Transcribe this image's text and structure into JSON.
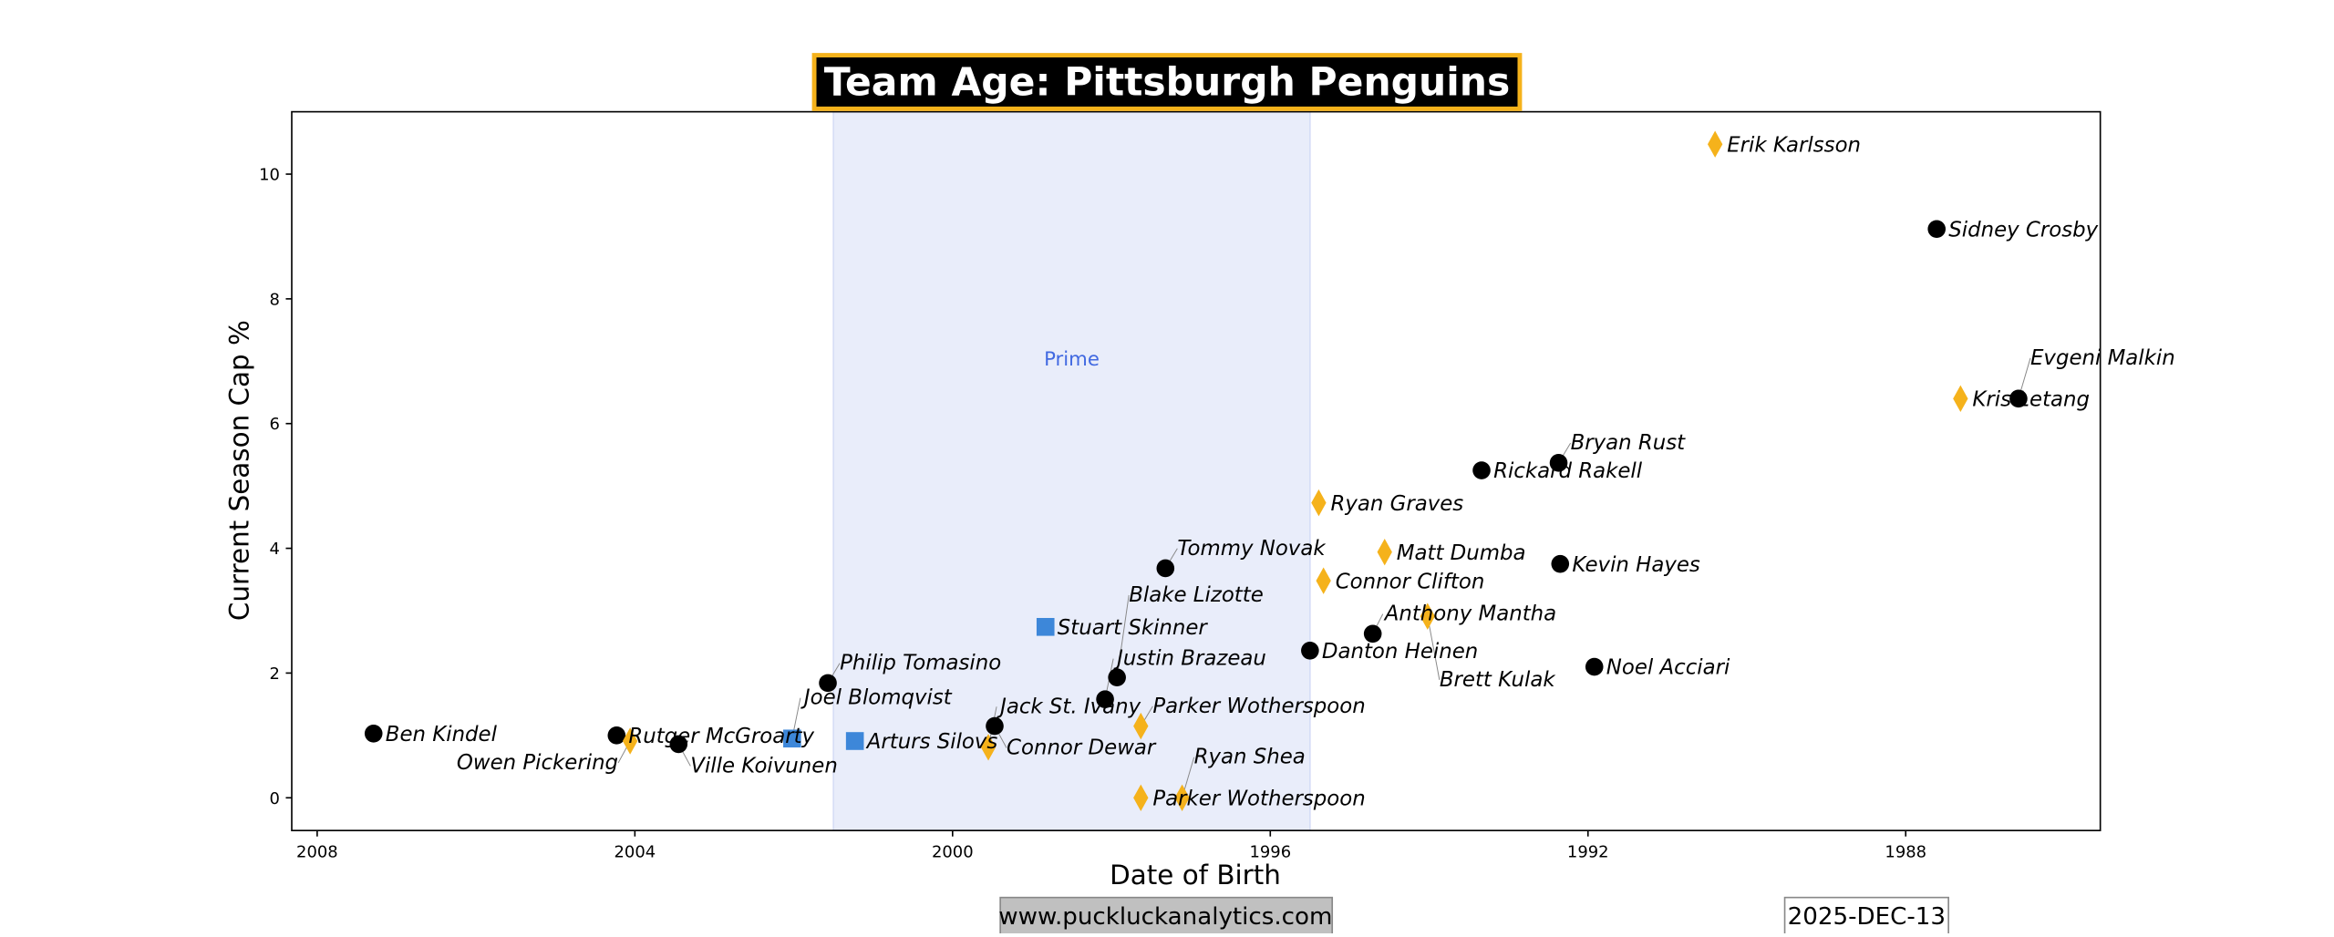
{
  "chart_data": {
    "type": "scatter",
    "title": "Team Age: Pittsburgh Penguins",
    "xlabel": "Date of Birth",
    "ylabel": "Current Season Cap %",
    "xlim": [
      2008.32,
      1985.55
    ],
    "ylim": [
      -0.525,
      11.0
    ],
    "x_ticks": [
      2008,
      2004,
      2000,
      1996,
      1992,
      1988
    ],
    "y_ticks": [
      0,
      2,
      4,
      6,
      8,
      10
    ],
    "grid": false,
    "band": {
      "label": "Prime",
      "from": 2001.5,
      "to": 1995.5,
      "label_x": 1998.5,
      "label_y": 7.05,
      "color": "#e9edfa",
      "label_color": "#4169e1"
    },
    "marker_colors": {
      "circle": "#000000",
      "diamond": "#f5b21b",
      "square": "#3d87d9"
    },
    "points": [
      {
        "name": "Ben Kindel",
        "x": 2007.29,
        "y": 1.03,
        "marker": "circle"
      },
      {
        "name": "Rutger McGroarty",
        "x": 2004.23,
        "y": 1.0,
        "marker": "circle"
      },
      {
        "name": "Owen Pickering",
        "x": 2004.06,
        "y": 0.91,
        "marker": "diamond"
      },
      {
        "name": "Ville Koivunen",
        "x": 2003.45,
        "y": 0.86,
        "marker": "circle"
      },
      {
        "name": "Joel Blomqvist",
        "x": 2002.02,
        "y": 0.95,
        "marker": "square"
      },
      {
        "name": "Arturs Silovs",
        "x": 2001.23,
        "y": 0.91,
        "marker": "square"
      },
      {
        "name": "Philip Tomasino",
        "x": 2001.57,
        "y": 1.84,
        "marker": "circle"
      },
      {
        "name": "Jack St. Ivany",
        "x": 1999.55,
        "y": 0.81,
        "marker": "diamond"
      },
      {
        "name": "Connor Dewar",
        "x": 1999.47,
        "y": 1.15,
        "marker": "circle"
      },
      {
        "name": "Stuart Skinner",
        "x": 1998.83,
        "y": 2.74,
        "marker": "square"
      },
      {
        "name": "Justin Brazeau",
        "x": 1998.08,
        "y": 1.58,
        "marker": "circle"
      },
      {
        "name": "Blake Lizotte",
        "x": 1997.93,
        "y": 1.93,
        "marker": "circle"
      },
      {
        "name": "Parker Wotherspoon",
        "x": 1997.63,
        "y": 1.15,
        "marker": "diamond"
      },
      {
        "name": "Parker Wotherspoon",
        "x": 1997.63,
        "y": 0.0,
        "marker": "diamond"
      },
      {
        "name": "Ryan Shea",
        "x": 1997.11,
        "y": 0.0,
        "marker": "diamond"
      },
      {
        "name": "Tommy Novak",
        "x": 1997.32,
        "y": 3.68,
        "marker": "circle"
      },
      {
        "name": "Danton Heinen",
        "x": 1995.5,
        "y": 2.36,
        "marker": "circle"
      },
      {
        "name": "Ryan Graves",
        "x": 1995.39,
        "y": 4.73,
        "marker": "diamond"
      },
      {
        "name": "Connor Clifton",
        "x": 1995.33,
        "y": 3.48,
        "marker": "diamond"
      },
      {
        "name": "Anthony Mantha",
        "x": 1994.71,
        "y": 2.63,
        "marker": "circle"
      },
      {
        "name": "Matt Dumba",
        "x": 1994.56,
        "y": 3.94,
        "marker": "diamond"
      },
      {
        "name": "Brett Kulak",
        "x": 1994.02,
        "y": 2.91,
        "marker": "diamond"
      },
      {
        "name": "Rickard Rakell",
        "x": 1993.34,
        "y": 5.25,
        "marker": "circle"
      },
      {
        "name": "Bryan Rust",
        "x": 1992.37,
        "y": 5.37,
        "marker": "circle"
      },
      {
        "name": "Kevin Hayes",
        "x": 1992.35,
        "y": 3.75,
        "marker": "circle"
      },
      {
        "name": "Noel Acciari",
        "x": 1991.92,
        "y": 2.1,
        "marker": "circle"
      },
      {
        "name": "Erik Karlsson",
        "x": 1990.4,
        "y": 10.48,
        "marker": "diamond"
      },
      {
        "name": "Sidney Crosby",
        "x": 1987.61,
        "y": 9.12,
        "marker": "circle"
      },
      {
        "name": "Kris Letang",
        "x": 1987.31,
        "y": 6.4,
        "marker": "diamond"
      },
      {
        "name": "Evgeni Malkin",
        "x": 1986.58,
        "y": 6.4,
        "marker": "circle"
      }
    ]
  },
  "footer": {
    "website": "www.puckluckanalytics.com",
    "date": "2025-DEC-13"
  },
  "colors": {
    "title_bg": "#000000",
    "title_border": "#f5b21b",
    "title_text": "#ffffff",
    "website_bg": "#c0c0c0"
  }
}
